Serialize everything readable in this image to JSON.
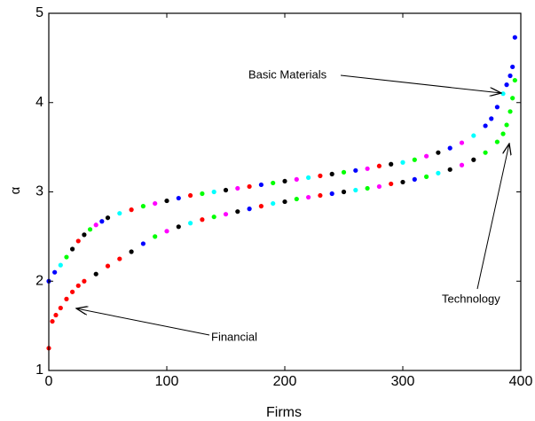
{
  "chart_data": {
    "type": "scatter",
    "x_label": "Firms",
    "y_label": "α",
    "xlim": [
      0,
      400
    ],
    "ylim": [
      1,
      5
    ],
    "xticks": [
      0,
      100,
      200,
      300,
      400
    ],
    "yticks": [
      1,
      2,
      3,
      4,
      5
    ],
    "annotations": [
      {
        "text": "Basic Materials"
      },
      {
        "text": "Technology"
      },
      {
        "text": "Financial"
      }
    ],
    "series": [
      {
        "x": [
          0,
          5,
          10,
          15,
          20,
          25,
          30,
          35,
          40,
          45,
          50,
          60,
          70,
          80,
          90,
          100,
          110,
          120,
          130,
          140,
          150,
          160,
          170,
          180,
          190,
          200,
          210,
          220,
          230,
          240,
          250,
          260,
          270,
          280,
          290,
          300,
          310,
          320,
          330,
          340,
          350,
          360,
          370,
          375,
          380,
          385,
          388,
          391,
          393,
          395
        ],
        "values": [
          2.0,
          2.1,
          2.18,
          2.27,
          2.36,
          2.45,
          2.52,
          2.58,
          2.63,
          2.67,
          2.71,
          2.76,
          2.8,
          2.84,
          2.87,
          2.9,
          2.93,
          2.96,
          2.98,
          3.0,
          3.02,
          3.04,
          3.06,
          3.08,
          3.1,
          3.12,
          3.14,
          3.16,
          3.18,
          3.2,
          3.22,
          3.24,
          3.26,
          3.29,
          3.31,
          3.33,
          3.36,
          3.4,
          3.44,
          3.49,
          3.55,
          3.63,
          3.74,
          3.82,
          3.95,
          4.1,
          4.2,
          4.3,
          4.4,
          4.73
        ],
        "colors": [
          "#0000ff",
          "#0000ff",
          "#00ffff",
          "#00ff00",
          "#000000",
          "#ff0000",
          "#000000",
          "#00ff00",
          "#ff00ff",
          "#0000ff",
          "#000000",
          "#00ffff",
          "#ff0000",
          "#00ff00",
          "#ff00ff",
          "#000000",
          "#0000ff",
          "#ff0000",
          "#00ff00",
          "#00ffff",
          "#000000",
          "#ff00ff",
          "#ff0000",
          "#0000ff",
          "#00ff00",
          "#000000",
          "#ff00ff",
          "#00ffff",
          "#ff0000",
          "#000000",
          "#00ff00",
          "#0000ff",
          "#ff00ff",
          "#ff0000",
          "#000000",
          "#00ffff",
          "#00ff00",
          "#ff00ff",
          "#000000",
          "#0000ff",
          "#ff00ff",
          "#00ffff",
          "#0000ff",
          "#0000ff",
          "#0000ff",
          "#00ffff",
          "#0000ff",
          "#0000ff",
          "#0000ff",
          "#0000ff"
        ]
      },
      {
        "x": [
          0,
          3,
          6,
          10,
          15,
          20,
          25,
          30,
          40,
          50,
          60,
          70,
          80,
          90,
          100,
          110,
          120,
          130,
          140,
          150,
          160,
          170,
          180,
          190,
          200,
          210,
          220,
          230,
          240,
          250,
          260,
          270,
          280,
          290,
          300,
          310,
          320,
          330,
          340,
          350,
          360,
          370,
          380,
          385,
          388,
          391,
          393,
          395
        ],
        "values": [
          1.25,
          1.55,
          1.62,
          1.7,
          1.8,
          1.88,
          1.95,
          2.0,
          2.08,
          2.17,
          2.25,
          2.33,
          2.42,
          2.5,
          2.56,
          2.61,
          2.65,
          2.69,
          2.72,
          2.75,
          2.78,
          2.81,
          2.84,
          2.87,
          2.89,
          2.92,
          2.94,
          2.96,
          2.98,
          3.0,
          3.02,
          3.04,
          3.06,
          3.09,
          3.11,
          3.14,
          3.17,
          3.21,
          3.25,
          3.3,
          3.36,
          3.44,
          3.56,
          3.65,
          3.75,
          3.9,
          4.05,
          4.25
        ],
        "colors": [
          "#ff0000",
          "#ff0000",
          "#ff0000",
          "#ff0000",
          "#ff0000",
          "#ff0000",
          "#ff0000",
          "#ff0000",
          "#000000",
          "#ff0000",
          "#ff0000",
          "#000000",
          "#0000ff",
          "#00ff00",
          "#ff00ff",
          "#000000",
          "#00ffff",
          "#ff0000",
          "#00ff00",
          "#ff00ff",
          "#000000",
          "#0000ff",
          "#ff0000",
          "#00ffff",
          "#000000",
          "#00ff00",
          "#ff00ff",
          "#ff0000",
          "#0000ff",
          "#000000",
          "#00ffff",
          "#00ff00",
          "#ff00ff",
          "#ff0000",
          "#000000",
          "#0000ff",
          "#00ff00",
          "#00ffff",
          "#000000",
          "#ff00ff",
          "#000000",
          "#00ff00",
          "#00ff00",
          "#00ff00",
          "#00ff00",
          "#00ff00",
          "#00ff00",
          "#00ff00"
        ]
      }
    ]
  }
}
